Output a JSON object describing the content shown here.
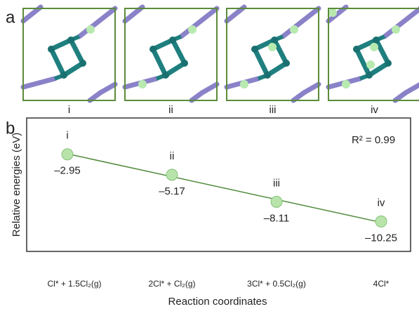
{
  "figure": {
    "panel_labels": [
      "a",
      "b"
    ],
    "structure_labels": [
      "i",
      "ii",
      "iii",
      "iv"
    ]
  },
  "chart_data": {
    "type": "scatter",
    "y_label": "Relative energies (eV)",
    "x_label": "Reaction coordinates",
    "categories": [
      "Cl* + 1.5Cl₂(g)",
      "2Cl* + Cl₂(g)",
      "3Cl* + 0.5Cl₂(g)",
      "4Cl*"
    ],
    "point_labels": [
      "i",
      "ii",
      "iii",
      "iv"
    ],
    "values": [
      -2.95,
      -5.17,
      -8.11,
      -10.25
    ],
    "value_labels": [
      "–2.95",
      "–5.17",
      "–8.11",
      "–10.25"
    ],
    "annotation": "R² = 0.99",
    "color": "#b8e4ab",
    "line_color": "#4f8a3a",
    "ylim": [
      -13.5,
      1
    ]
  }
}
